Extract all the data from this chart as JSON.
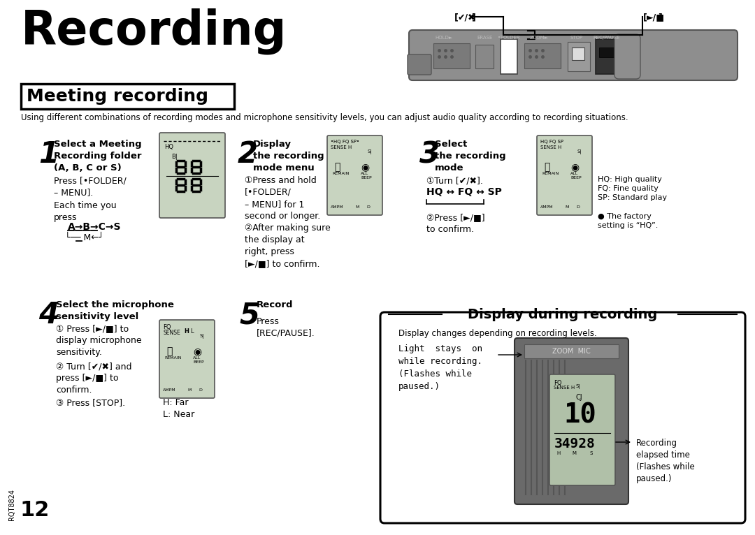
{
  "title": "Recording",
  "subtitle": "Meeting recording",
  "intro": "Using different combinations of recording modes and microphone sensitivity levels, you can adjust audio quality according to recording situations.",
  "bg_color": "#ffffff",
  "device_color": "#9a9a9a",
  "lcd_color": "#c8d4c0",
  "text_color": "#000000",
  "step1_heading": "Select a Meeting\nRecording folder\n(A, B, C or S)",
  "step1_sub1": "Press [•FOLDER/\n– MENU].",
  "step1_sub2": "Each time you\npress",
  "step2_heading": "Display\nthe recording\nmode menu",
  "step2_sub1": "①Press and hold\n[•FOLDER/\n– MENU] for 1\nsecond or longer.",
  "step2_sub2": "②After making sure\nthe display at\nright, press\n[►/■] to confirm.",
  "step3_heading": "Select\nthe recording\nmode",
  "step3_sub1": "①Turn [✔/✖].",
  "step3_hqfqsp": "HQ ↔ FQ ↔ SP",
  "step3_sub2": "②Press [►/■]\nto confirm.",
  "step3_notes": "HQ: High quality\nFQ: Fine quality\nSP: Standard play",
  "step3_factory": "● The factory\nsetting is “HQ”.",
  "step4_heading": "Select the microphone\nsensitivity level",
  "step4_sub1": "① Press [►/■] to\ndisplay microphone\nsensitivity.",
  "step4_sub2": "② Turn [✔/✖] and\npress [►/■] to\nconfirm.",
  "step4_sub3": "③ Press [STOP].",
  "step4_note": "H: Far\nL: Near",
  "step5_heading": "Record",
  "step5_sub": "Press\n[REC/PAUSE].",
  "display_heading": "Display during recording",
  "display_note": "Display changes depending on recording levels.",
  "display_light": "Light  stays  on\nwhile recording.\n(Flashes while\npaused.)",
  "display_elapsed": "Recording\nelapsed time\n(Flashes while\npaused.)",
  "page_num": "12",
  "model_num": "RQT8824"
}
